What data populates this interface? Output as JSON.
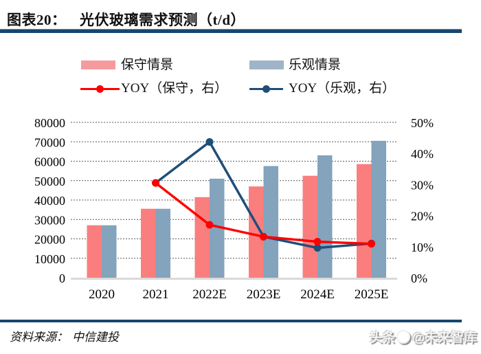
{
  "header": {
    "tag": "图表20：",
    "title": "光伏玻璃需求预测（t/d）"
  },
  "legend": [
    {
      "label": "保守情景",
      "type": "bar",
      "color": "#f59ba0"
    },
    {
      "label": "乐观情景",
      "type": "bar",
      "color": "#9fb4c7"
    },
    {
      "label": "YOY（保守，右）",
      "type": "line",
      "color": "#ff0000"
    },
    {
      "label": "YOY（乐观，右）",
      "type": "line",
      "color": "#1f4e79"
    }
  ],
  "chart_data": {
    "type": "bar",
    "subtype": "grouped bars with two YOY lines on secondary axis",
    "categories": [
      "2020",
      "2021",
      "2022E",
      "2023E",
      "2024E",
      "2025E"
    ],
    "series": [
      {
        "name": "保守情景",
        "type": "bar",
        "axis": "left",
        "color": "#fa7e7e",
        "values": [
          27000,
          35500,
          41500,
          47000,
          52500,
          58500
        ]
      },
      {
        "name": "乐观情景",
        "type": "bar",
        "axis": "left",
        "color": "#84a3bc",
        "values": [
          27000,
          35500,
          51000,
          57500,
          63000,
          70500
        ]
      },
      {
        "name": "YOY（保守，右）",
        "type": "line",
        "axis": "right",
        "color": "#ff0000",
        "values": [
          null,
          30.5,
          17,
          13.2,
          11.6,
          10.9
        ]
      },
      {
        "name": "YOY（乐观，右）",
        "type": "line",
        "axis": "right",
        "color": "#1f4e79",
        "values": [
          null,
          30.5,
          43.7,
          13.2,
          9.6,
          11
        ]
      }
    ],
    "title": "光伏玻璃需求预测（t/d）",
    "xlabel": "",
    "ylabel": "",
    "left_axis": {
      "min": 0,
      "max": 80000,
      "step": 10000,
      "tick_labels": [
        "0",
        "10000",
        "20000",
        "30000",
        "40000",
        "50000",
        "60000",
        "70000",
        "80000"
      ]
    },
    "right_axis": {
      "min": 0,
      "max": 50,
      "step": 10,
      "unit": "%",
      "tick_labels": [
        "0%",
        "10%",
        "20%",
        "30%",
        "40%",
        "50%"
      ]
    },
    "grid": "horizontal dotted",
    "legend_position": "top"
  },
  "footer": {
    "source_label": "资料来源：",
    "source_value": "中信建投",
    "watermark_left": "头条",
    "watermark_right": "@未来智库"
  }
}
